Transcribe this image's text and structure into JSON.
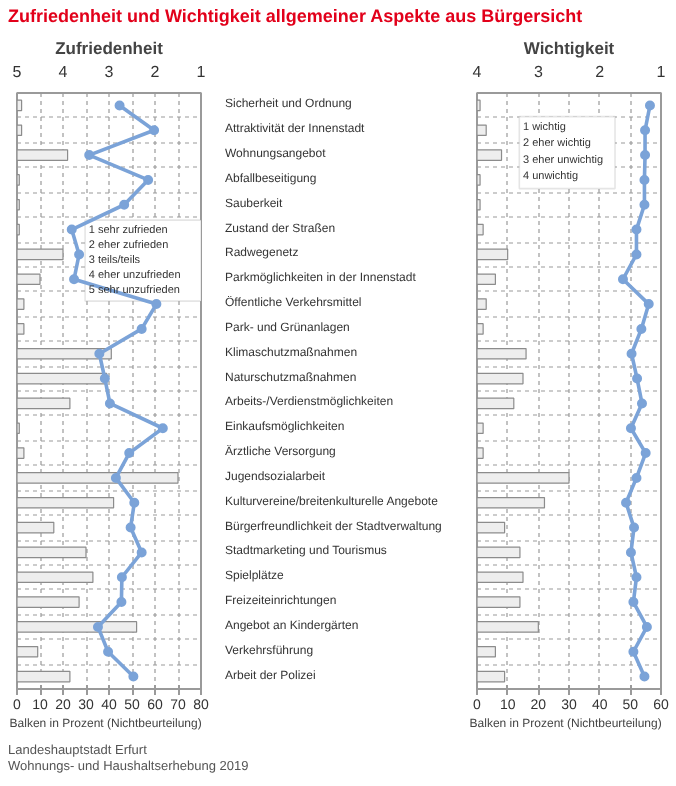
{
  "chart_data": [
    {
      "type": "bar",
      "orientation": "horizontal",
      "title": "Zufriedenheit und Wichtigkeit allgemeiner Aspekte aus Bürgersicht",
      "subtitle": "Zufriedenheit",
      "xlabel": "Balken in Prozent   (Nichtbeurteilung)",
      "categories": [
        "Sicherheit und Ordnung",
        "Attraktivität der Innenstadt",
        "Wohnungsangebot",
        "Abfallbeseitigung",
        "Sauberkeit",
        "Zustand der Straßen",
        "Radwegenetz",
        "Parkmöglichkeiten in der Innenstadt",
        "Öffentliche Verkehrsmittel",
        "Park- und Grünanlagen",
        "Klimaschutzmaßnahmen",
        "Naturschutzmaßnahmen",
        "Arbeits-/Verdienstmöglichkeiten",
        "Einkaufsmöglichkeiten",
        "Ärztliche Versorgung",
        "Jugendsozialarbeit",
        "Kulturvereine/breitenkulturelle Angebote",
        "Bürgerfreundlichkeit der Stadtverwaltung",
        "Stadtmarketing und Tourismus",
        "Spielplätze",
        "Freizeiteinrichtungen",
        "Angebot an Kindergärten",
        "Verkehrsführung",
        "Arbeit der Polizei"
      ],
      "series": [
        {
          "type": "bar",
          "color": "#eeeeee",
          "values": [
            2,
            2,
            22,
            1,
            1,
            1,
            20,
            10,
            3,
            3,
            41,
            39,
            23,
            1,
            3,
            70,
            42,
            16,
            30,
            33,
            27,
            52,
            9,
            23
          ]
        },
        {
          "type": "line",
          "axis": "x2",
          "color": "#7ba3d8",
          "marker": "circle",
          "line_style": "solid",
          "values": [
            2.77,
            2.02,
            3.43,
            2.15,
            2.67,
            3.81,
            3.65,
            3.76,
            1.97,
            2.29,
            3.21,
            3.09,
            2.98,
            1.83,
            2.56,
            2.85,
            2.45,
            2.53,
            2.29,
            2.72,
            2.73,
            3.24,
            3.02,
            2.47
          ]
        }
      ],
      "xlim": [
        0,
        80
      ],
      "xticks": [
        0,
        10,
        20,
        30,
        40,
        50,
        60,
        70,
        80
      ],
      "x2lim": [
        5,
        1
      ],
      "x2ticks": [
        5,
        4,
        3,
        2,
        1
      ],
      "grid": true,
      "annotations": [
        "1 sehr zufrieden\n2 eher zufrieden\n3 teils/teils\n4 eher unzufrieden\n5 sehr unzufrieden",
        "Landeshauptstadt Erfurt",
        "Wohnungs- und Haushaltserhebung 2019"
      ]
    },
    {
      "type": "bar",
      "orientation": "horizontal",
      "subtitle": "Wichtigkeit",
      "xlabel": "Balken in Prozent   (Nichtbeurteilung)",
      "series": [
        {
          "type": "bar",
          "color": "#eeeeee",
          "values": [
            1,
            3,
            8,
            1,
            1,
            2,
            10,
            6,
            3,
            2,
            16,
            15,
            12,
            2,
            2,
            30,
            22,
            9,
            14,
            15,
            14,
            20,
            6,
            9
          ]
        },
        {
          "type": "line",
          "axis": "x2",
          "color": "#7ba3d8",
          "marker": "circle",
          "line_style": "solid",
          "values": [
            1.18,
            1.26,
            1.26,
            1.27,
            1.27,
            1.4,
            1.4,
            1.62,
            1.2,
            1.32,
            1.48,
            1.39,
            1.31,
            1.49,
            1.25,
            1.4,
            1.57,
            1.44,
            1.49,
            1.4,
            1.45,
            1.23,
            1.45,
            1.27
          ]
        }
      ],
      "xlim": [
        0,
        60
      ],
      "xticks": [
        0,
        10,
        20,
        30,
        40,
        50,
        60
      ],
      "x2lim": [
        4,
        1
      ],
      "x2ticks": [
        4,
        3,
        2,
        1
      ],
      "grid": true,
      "tick_labels": "x",
      "annotations": [
        "1 wichtig\n2 eher wichtig\n3 eher unwichtig\n4 unwichtig"
      ]
    }
  ]
}
